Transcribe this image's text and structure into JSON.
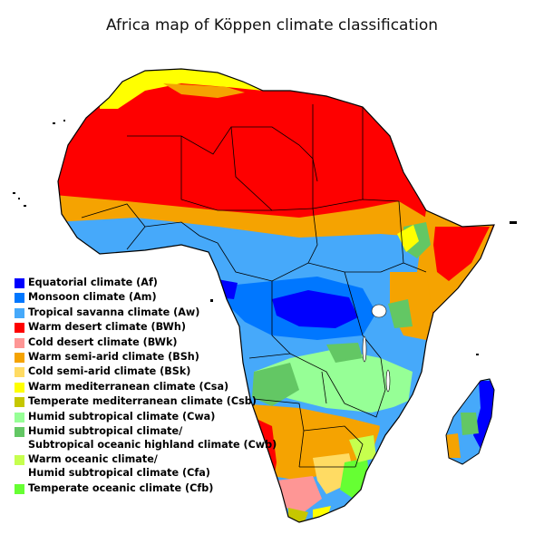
{
  "title": "Africa map of Köppen climate classification",
  "colors": {
    "ocean": "#ffffff",
    "Af": "#0000fe",
    "Am": "#0077ff",
    "Aw": "#46a9fa",
    "BWh": "#fe0000",
    "BWk": "#fe9695",
    "BSh": "#f5a301",
    "BSk": "#ffdb63",
    "Csa": "#ffff00",
    "Csb": "#c6c700",
    "Cwa": "#96ff96",
    "Cwb": "#63c764",
    "Cfa": "#c6ff4e",
    "Cfb": "#66ff33"
  },
  "legend": [
    {
      "code": "Af",
      "label": "Equatorial climate (Af)"
    },
    {
      "code": "Am",
      "label": "Monsoon climate (Am)"
    },
    {
      "code": "Aw",
      "label": "Tropical savanna climate (Aw)"
    },
    {
      "code": "BWh",
      "label": "Warm desert climate (BWh)"
    },
    {
      "code": "BWk",
      "label": "Cold desert climate (BWk)"
    },
    {
      "code": "BSh",
      "label": "Warm semi-arid climate (BSh)"
    },
    {
      "code": "BSk",
      "label": "Cold semi-arid climate (BSk)"
    },
    {
      "code": "Csa",
      "label": "Warm mediterranean climate (Csa)"
    },
    {
      "code": "Csb",
      "label": "Temperate mediterranean climate (Csb)"
    },
    {
      "code": "Cwa",
      "label": "Humid subtropical climate (Cwa)"
    },
    {
      "code": "Cwb",
      "label": "Humid subtropical climate/\nSubtropical oceanic highland climate (Cwb)"
    },
    {
      "code": "Cfa",
      "label": "Warm oceanic climate/\nHumid subtropical climate (Cfa)"
    },
    {
      "code": "Cfb",
      "label": "Temperate oceanic climate (Cfb)"
    }
  ]
}
